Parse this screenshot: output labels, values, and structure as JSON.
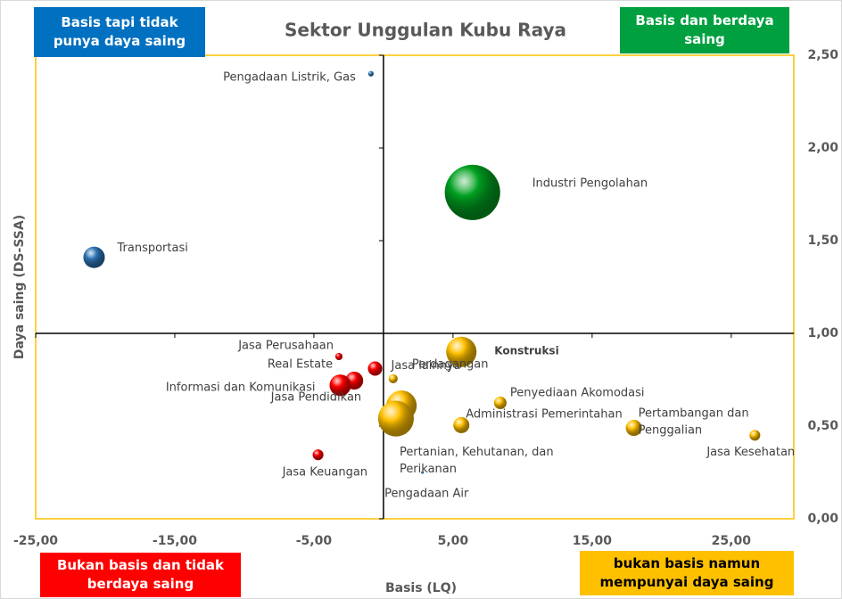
{
  "chart_data": {
    "type": "bubble",
    "title": "Sektor Unggulan Kubu Raya",
    "x_label": "Basis (LQ)",
    "y_label": "Daya saing (DS-SSA)",
    "xlim": [
      -25,
      29.5
    ],
    "ylim": [
      0,
      2.5
    ],
    "x_cross": 0,
    "y_cross": 1,
    "xticks": [
      {
        "value": -25,
        "label": "-25,00"
      },
      {
        "value": -15,
        "label": "-15,00"
      },
      {
        "value": -5,
        "label": "-5,00"
      },
      {
        "value": 5,
        "label": "5,00"
      },
      {
        "value": 15,
        "label": "15,00"
      },
      {
        "value": 25,
        "label": "25,00"
      }
    ],
    "yticks": [
      {
        "value": 0,
        "label": "0,00"
      },
      {
        "value": 0.5,
        "label": "0,50"
      },
      {
        "value": 1,
        "label": "1,00"
      },
      {
        "value": 1.5,
        "label": "1,50"
      },
      {
        "value": 2,
        "label": "2,00"
      },
      {
        "value": 2.5,
        "label": "2,50"
      }
    ],
    "quadrants": [
      {
        "lines": [
          "Basis tapi tidak",
          "punya daya saing"
        ],
        "color": "#0070c0"
      },
      {
        "lines": [
          "Basis dan berdaya",
          "saing"
        ],
        "color": "#00a040"
      },
      {
        "lines": [
          "Bukan basis dan tidak",
          "berdaya saing"
        ],
        "color": "#ff0000"
      },
      {
        "lines": [
          "bukan basis namun",
          "mempunyai daya saing"
        ],
        "color": "#ffc000"
      }
    ],
    "points": [
      {
        "label": [
          "Pengadaan Listrik, Gas"
        ],
        "x": -0.9,
        "y": 2.4,
        "size": 3,
        "color": "#2e75b6"
      },
      {
        "label": [
          "Industri Pengolahan"
        ],
        "x": 6.4,
        "y": 1.76,
        "size": 31,
        "color": "#00a020"
      },
      {
        "label": [
          "Transportasi"
        ],
        "x": -20.8,
        "y": 1.41,
        "size": 12,
        "color": "#2e75b6"
      },
      {
        "label": [
          "Jasa Perusahaan"
        ],
        "x": -3.2,
        "y": 0.875,
        "size": 4,
        "color": "#ff0000"
      },
      {
        "label": [
          "Jasa lainnya"
        ],
        "x": -0.6,
        "y": 0.81,
        "size": 8,
        "color": "#ff0000"
      },
      {
        "label": [
          "Real Estate"
        ],
        "x": -2.1,
        "y": 0.745,
        "size": 10,
        "color": "#ff0000"
      },
      {
        "label": [
          "Informasi dan Komunikasi"
        ],
        "x": -3.1,
        "y": 0.72,
        "size": 12,
        "color": "#ff0000"
      },
      {
        "label": [
          "Konstruksi"
        ],
        "x": 5.6,
        "y": 0.9,
        "size": 17,
        "color": "#ffc000"
      },
      {
        "label": [
          "Perdagangan"
        ],
        "x": 0.7,
        "y": 0.755,
        "size": 5,
        "color": "#ffc000"
      },
      {
        "label": [
          "Penyediaan Akomodasi"
        ],
        "x": 8.4,
        "y": 0.625,
        "size": 7,
        "color": "#ffc000"
      },
      {
        "label": [
          "Jasa Pendidikan"
        ],
        "x": 1.3,
        "y": 0.61,
        "size": 17,
        "color": "#ffc000"
      },
      {
        "label": [
          "Pertanian, Kehutanan, dan",
          "Perikanan"
        ],
        "x": 0.9,
        "y": 0.54,
        "size": 20,
        "color": "#ffc000"
      },
      {
        "label": [
          "Administrasi Pemerintahan"
        ],
        "x": 5.6,
        "y": 0.505,
        "size": 9,
        "color": "#ffc000"
      },
      {
        "label": [
          "Pertambangan dan",
          "Penggalian"
        ],
        "x": 18,
        "y": 0.49,
        "size": 9,
        "color": "#ffc000"
      },
      {
        "label": [
          "Jasa Kesehatan"
        ],
        "x": 26.7,
        "y": 0.45,
        "size": 6,
        "color": "#ffc000"
      },
      {
        "label": [
          "Jasa Keuangan"
        ],
        "x": -4.7,
        "y": 0.345,
        "size": 6,
        "color": "#ff0000"
      },
      {
        "label": [
          "Pengadaan Air"
        ],
        "x": 2.8,
        "y": 0.25,
        "size": 1.5,
        "color": "#2e75b6"
      }
    ]
  }
}
